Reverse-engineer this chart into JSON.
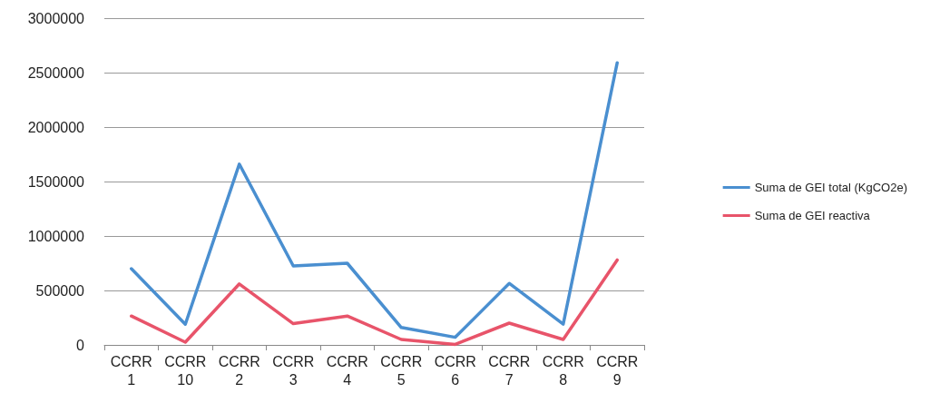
{
  "chart_data": {
    "type": "line",
    "categories": [
      "CCRR 1",
      "CCRR 10",
      "CCRR 2",
      "CCRR 3",
      "CCRR 4",
      "CCRR 5",
      "CCRR 6",
      "CCRR 7",
      "CCRR 8",
      "CCRR 9"
    ],
    "series": [
      {
        "name": "Suma de GEI total (KgCO2e)",
        "color": "#4a8fd0",
        "values": [
          700000,
          190000,
          1660000,
          725000,
          750000,
          160000,
          70000,
          565000,
          190000,
          2590000
        ]
      },
      {
        "name": "Suma de GEI reactiva",
        "color": "#e8546a",
        "values": [
          265000,
          25000,
          560000,
          195000,
          265000,
          50000,
          5000,
          200000,
          50000,
          780000
        ]
      }
    ],
    "ylim": [
      0,
      3000000
    ],
    "yticks": [
      0,
      500000,
      1000000,
      1500000,
      2000000,
      2500000,
      3000000
    ],
    "grid": "y",
    "legend": "right",
    "marker": "none",
    "line_style": "solid"
  }
}
